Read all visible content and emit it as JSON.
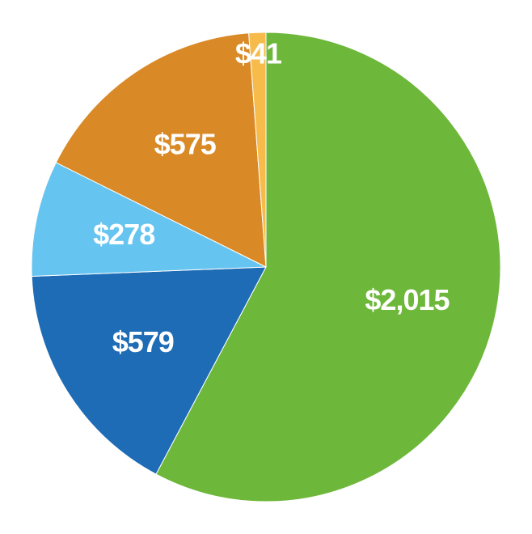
{
  "chart_data": {
    "type": "pie",
    "values": [
      2015,
      579,
      278,
      575,
      41
    ],
    "value_labels": [
      "$2,015",
      "$579",
      "$278",
      "$575",
      "$41"
    ],
    "colors": [
      "#6db73a",
      "#1e6cb5",
      "#66c4f0",
      "#d98a27",
      "#f7bb4b"
    ]
  }
}
